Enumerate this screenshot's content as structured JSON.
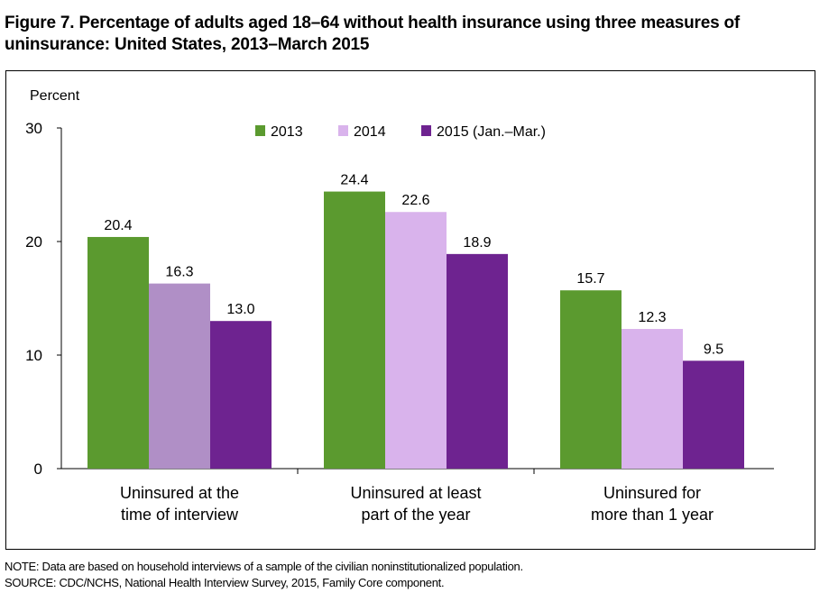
{
  "figure": {
    "title": "Figure 7. Percentage of adults aged 18–64 without health insurance using three measures of uninsurance: United States, 2013–March 2015",
    "note": "NOTE: Data are based on household interviews of a sample of the civilian noninstitutionalized population.",
    "source": "SOURCE: CDC/NCHS, National Health Interview Survey, 2015, Family Core component."
  },
  "chart_data": {
    "type": "bar",
    "ylabel": "Percent",
    "ylim": [
      0,
      30
    ],
    "yticks": [
      0,
      10,
      20,
      30
    ],
    "grid": false,
    "legend_position": "top-right",
    "categories": [
      [
        "Uninsured at the",
        "time of interview"
      ],
      [
        "Uninsured at least",
        "part of the year"
      ],
      [
        "Uninsured for",
        "more than 1 year"
      ]
    ],
    "series": [
      {
        "name": "2013",
        "color": "#5b9a2f",
        "values": [
          20.4,
          24.4,
          15.7
        ]
      },
      {
        "name": "2014",
        "color": "#d9b3ec",
        "values": [
          16.3,
          22.6,
          12.3
        ]
      },
      {
        "name": "2015 (Jan.–Mar.)",
        "color": "#6e2390",
        "values": [
          13.0,
          18.9,
          9.5
        ]
      }
    ],
    "data_labels": [
      [
        "20.4",
        "24.4",
        "15.7"
      ],
      [
        "16.3",
        "22.6",
        "12.3"
      ],
      [
        "13.0",
        "18.9",
        "9.5"
      ]
    ],
    "highlight_bar": {
      "series": 1,
      "category": 0,
      "color": "#b08fc6"
    }
  }
}
